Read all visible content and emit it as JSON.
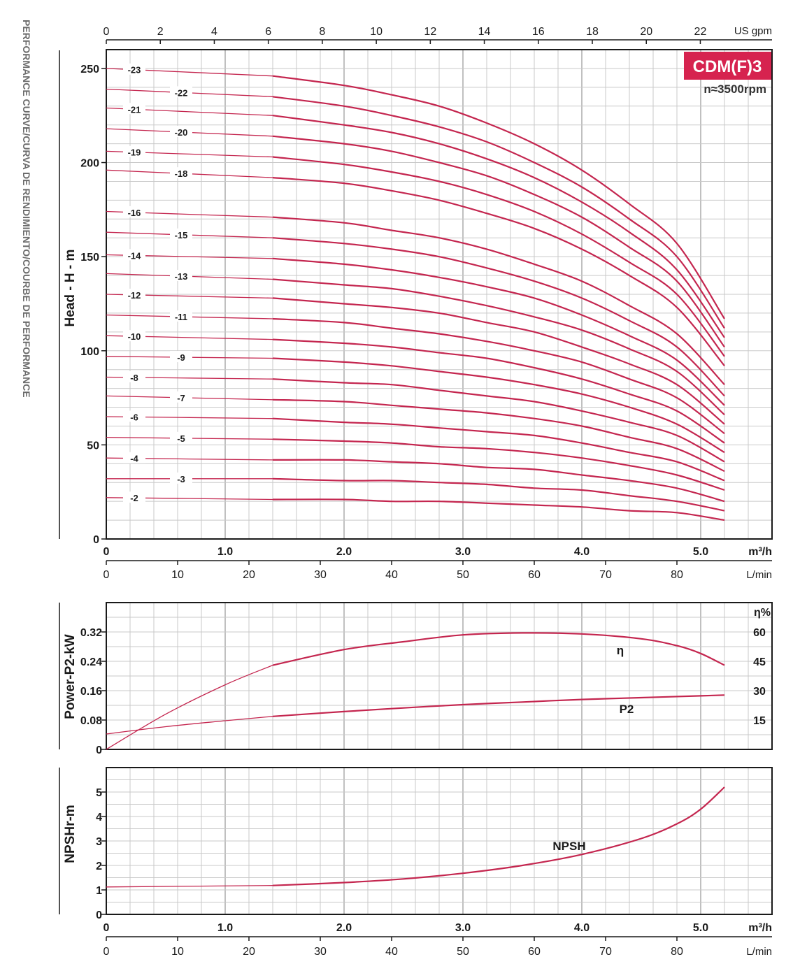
{
  "side_title": "PERFORMANCE CURVE/CURVA DE RENDIMIENTO/COURBE DE PERFORMANCE",
  "model": {
    "name": "CDM(F)3",
    "speed": "n≈3500rpm",
    "badge_color": "#d6234f"
  },
  "colors": {
    "curve": "#c4264f"
  },
  "axes": {
    "flow_m3h": {
      "unit": "m³/h",
      "ticks": [
        "0",
        "1.0",
        "2.0",
        "3.0",
        "4.0",
        "5.0"
      ],
      "range": [
        0,
        5.6
      ]
    },
    "flow_lmin": {
      "unit": "L/min",
      "ticks": [
        "0",
        "10",
        "20",
        "30",
        "40",
        "50",
        "60",
        "70",
        "80"
      ]
    },
    "flow_usgpm": {
      "unit": "US gpm",
      "ticks": [
        "0",
        "2",
        "4",
        "6",
        "8",
        "10",
        "12",
        "14",
        "16",
        "18",
        "20",
        "22"
      ]
    },
    "head": {
      "label": "Head - H - m",
      "ticks": [
        "0",
        "50",
        "100",
        "150",
        "200",
        "250"
      ],
      "range": [
        0,
        260
      ]
    },
    "power": {
      "label": "Power-P2-kW",
      "ticks": [
        "0",
        "0.08",
        "0.16",
        "0.24",
        "0.32"
      ],
      "range": [
        0,
        0.4
      ]
    },
    "efficiency": {
      "label": "η%",
      "ticks": [
        "15",
        "30",
        "45",
        "60"
      ],
      "range": [
        0,
        75
      ]
    },
    "npsh": {
      "label": "NPSHr-m",
      "ticks": [
        "0",
        "1",
        "2",
        "3",
        "4",
        "5"
      ],
      "range": [
        0,
        6
      ]
    }
  },
  "chart_data": [
    {
      "type": "line",
      "x_unit": "m³/h",
      "ylabel": "Head - H - m",
      "xlim": [
        0,
        5.6
      ],
      "ylim": [
        0,
        260
      ],
      "x": [
        0,
        1.4,
        2.0,
        2.4,
        2.8,
        3.2,
        3.6,
        4.0,
        4.4,
        4.8,
        5.2
      ],
      "series": [
        {
          "name": "-23",
          "values": [
            250,
            246,
            241,
            236,
            230,
            221,
            210,
            196,
            178,
            157,
            117
          ]
        },
        {
          "name": "-22",
          "values": [
            239,
            235,
            230,
            225,
            219,
            211,
            200,
            187,
            170,
            150,
            112
          ]
        },
        {
          "name": "-21",
          "values": [
            229,
            225,
            220,
            216,
            210,
            202,
            192,
            179,
            163,
            143,
            107
          ]
        },
        {
          "name": "-20",
          "values": [
            218,
            214,
            210,
            206,
            200,
            193,
            183,
            171,
            155,
            137,
            102
          ]
        },
        {
          "name": "-19",
          "values": [
            206,
            203,
            199,
            195,
            190,
            183,
            174,
            162,
            147,
            130,
            97
          ]
        },
        {
          "name": "-18",
          "values": [
            196,
            192,
            189,
            185,
            180,
            173,
            165,
            154,
            140,
            123,
            92
          ]
        },
        {
          "name": "-16",
          "values": [
            174,
            171,
            168,
            164,
            160,
            154,
            146,
            137,
            124,
            109,
            82
          ]
        },
        {
          "name": "-15",
          "values": [
            163,
            160,
            157,
            154,
            150,
            144,
            137,
            128,
            116,
            102,
            76
          ]
        },
        {
          "name": "-14",
          "values": [
            151,
            149,
            146,
            143,
            139,
            134,
            128,
            119,
            108,
            95,
            71
          ]
        },
        {
          "name": "-13",
          "values": [
            141,
            138,
            135,
            133,
            129,
            124,
            118,
            111,
            101,
            89,
            66
          ]
        },
        {
          "name": "-12",
          "values": [
            130,
            128,
            125,
            123,
            120,
            115,
            110,
            102,
            93,
            82,
            61
          ]
        },
        {
          "name": "-11",
          "values": [
            119,
            117,
            115,
            112,
            109,
            105,
            100,
            94,
            85,
            75,
            56
          ]
        },
        {
          "name": "-10",
          "values": [
            108,
            106,
            104,
            102,
            99,
            96,
            91,
            85,
            77,
            68,
            51
          ]
        },
        {
          "name": "-9",
          "values": [
            97,
            96,
            94,
            92,
            89,
            86,
            82,
            77,
            70,
            61,
            46
          ]
        },
        {
          "name": "-8",
          "values": [
            86,
            85,
            83,
            82,
            79,
            76,
            73,
            68,
            62,
            55,
            41
          ]
        },
        {
          "name": "-7",
          "values": [
            76,
            74,
            73,
            71,
            69,
            67,
            64,
            60,
            54,
            48,
            36
          ]
        },
        {
          "name": "-6",
          "values": [
            65,
            64,
            62,
            61,
            59,
            57,
            55,
            51,
            46,
            41,
            31
          ]
        },
        {
          "name": "-5",
          "values": [
            54,
            53,
            52,
            51,
            49,
            48,
            46,
            43,
            39,
            34,
            26
          ]
        },
        {
          "name": "-4",
          "values": [
            43,
            42,
            42,
            41,
            40,
            38,
            37,
            34,
            31,
            27,
            20
          ]
        },
        {
          "name": "-3",
          "values": [
            32,
            32,
            31,
            31,
            30,
            29,
            27,
            26,
            23,
            20,
            15
          ]
        },
        {
          "name": "-2",
          "values": [
            22,
            21,
            21,
            20,
            20,
            19,
            18,
            17,
            15,
            14,
            10
          ]
        }
      ]
    },
    {
      "type": "line",
      "x_unit": "m³/h",
      "ylabel": "Power-P2-kW",
      "y2label": "η%",
      "xlim": [
        0,
        5.6
      ],
      "series": [
        {
          "name": "P2",
          "axis": "Power-P2-kW",
          "x": [
            0,
            0.5,
            1.0,
            1.4,
            2.0,
            2.5,
            3.0,
            3.5,
            4.0,
            4.5,
            5.0,
            5.2
          ],
          "values": [
            0.042,
            0.062,
            0.078,
            0.09,
            0.103,
            0.113,
            0.122,
            0.129,
            0.136,
            0.141,
            0.146,
            0.148
          ]
        },
        {
          "name": "η",
          "axis": "η%",
          "x": [
            0,
            0.5,
            1.0,
            1.4,
            2.0,
            2.5,
            3.0,
            3.5,
            4.0,
            4.5,
            4.8,
            5.0,
            5.2
          ],
          "values": [
            0,
            18,
            33,
            43,
            51,
            55,
            58.5,
            59.5,
            59,
            56.5,
            53,
            49,
            43
          ]
        }
      ]
    },
    {
      "type": "line",
      "x_unit": "m³/h",
      "ylabel": "NPSHr-m",
      "xlim": [
        0,
        5.6
      ],
      "ylim": [
        0,
        6
      ],
      "series": [
        {
          "name": "NPSH",
          "x": [
            0,
            1.4,
            2.0,
            2.5,
            3.0,
            3.5,
            4.0,
            4.5,
            4.8,
            5.0,
            5.2
          ],
          "values": [
            1.12,
            1.18,
            1.3,
            1.45,
            1.68,
            2.0,
            2.45,
            3.1,
            3.7,
            4.3,
            5.2
          ]
        }
      ]
    }
  ]
}
